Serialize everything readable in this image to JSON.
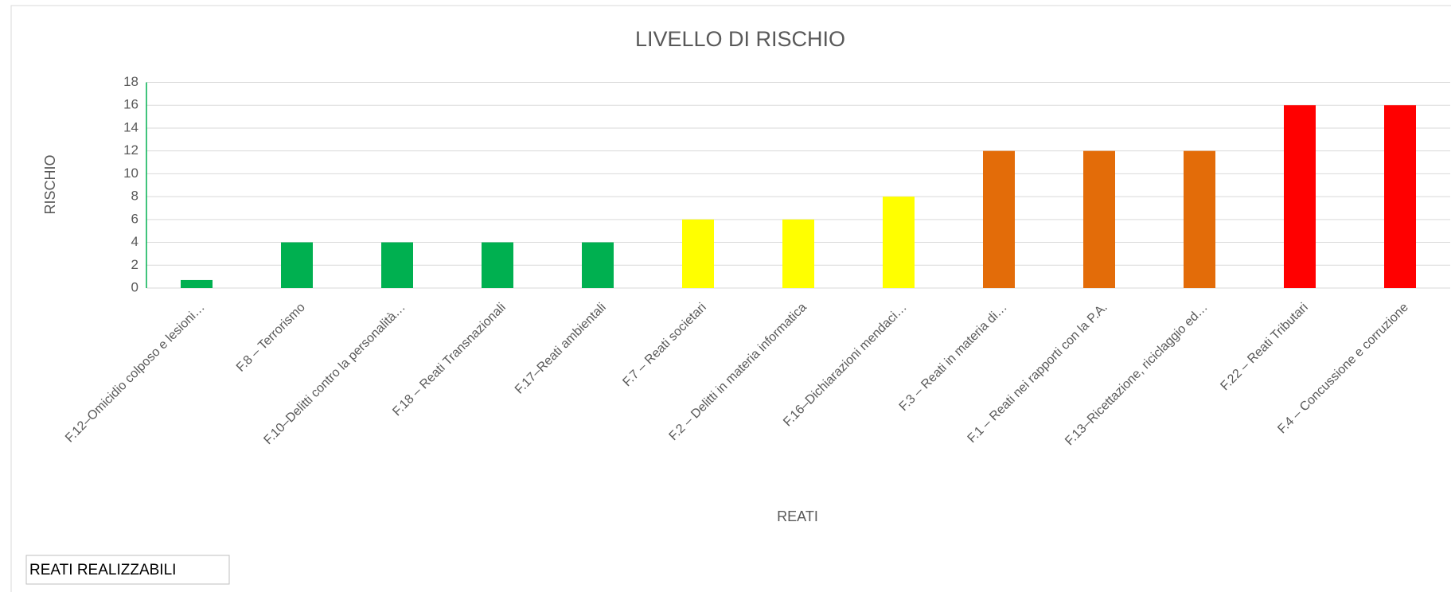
{
  "chart_data": {
    "type": "bar",
    "title": "LIVELLO DI RISCHIO",
    "y_label": "RISCHIO",
    "x_label": "REATI",
    "categories": [
      "F.12–Omicidio colposo e lesioni…",
      "F.8 – Terrorismo",
      "F.10–Delitti contro la personalità…",
      "F.18 – Reati Transnazionali",
      "F.17–Reati ambientali",
      "F.7 – Reati societari",
      "F.2 – Delitti in materia informatica",
      "F.16–Dichiarazioni mendaci…",
      "F.3 – Reati in materia di…",
      "F.1 – Reati nei rapporti con la P.A.",
      "F.13–Ricettazione, riciclaggio ed…",
      "F.22 – Reati Tributari",
      "F.4 – Concussione e corruzione"
    ],
    "values": [
      0.7,
      4,
      4,
      4,
      4,
      6,
      6,
      8,
      12,
      12,
      12,
      16,
      16
    ],
    "colors": [
      "#00b050",
      "#00b050",
      "#00b050",
      "#00b050",
      "#00b050",
      "#ffff00",
      "#ffff00",
      "#ffff00",
      "#e36c09",
      "#e36c09",
      "#e36c09",
      "#ff0000",
      "#ff0000"
    ],
    "ylim": [
      0,
      18
    ],
    "yticks": [
      0,
      2,
      4,
      6,
      8,
      10,
      12,
      14,
      16,
      18
    ],
    "grid": true
  },
  "footer_box": "REATI REALIZZABILI"
}
